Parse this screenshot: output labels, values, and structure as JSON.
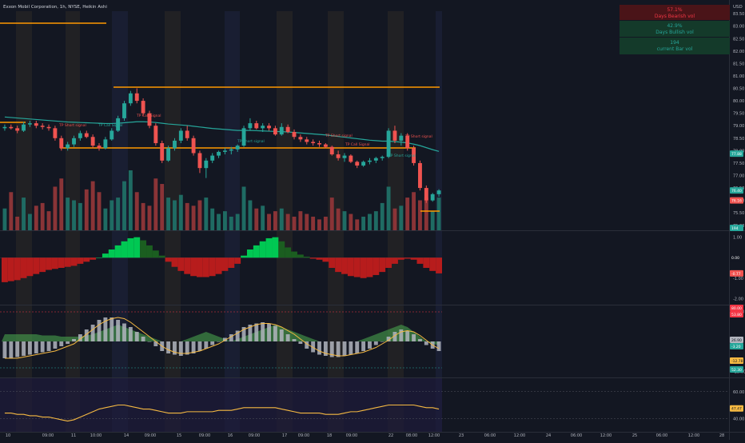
{
  "header": {
    "title": "Exxon Mobil Corporation, 1h, NYSE, Heikin Ashi",
    "currency": "USD"
  },
  "stats": [
    {
      "value": "57.1%",
      "label": "Days Bearish vol",
      "bg": "#4a1418",
      "color": "#f23645"
    },
    {
      "value": "42.9%",
      "label": "Days Bullish vol",
      "bg": "#143a2a",
      "color": "#26a69a"
    },
    {
      "value": "194",
      "label": "current Bar vol",
      "bg": "#143a2a",
      "color": "#26a69a"
    }
  ],
  "colors": {
    "bull": "#26a69a",
    "bear": "#ef5350",
    "vol_bull": "#1f6b63",
    "vol_bear": "#8a3437",
    "orange": "#ff9800",
    "teal_ma": "#26a69a",
    "macd_bright_green": "#00c853",
    "macd_dark_green": "#1b5e20",
    "macd_red": "#b71c1c",
    "stoch_gray": "#b2b5be",
    "stoch_band": "#4caf50",
    "rsi_line": "#f5b942",
    "rsi_bg": "#1e1b3a"
  },
  "signals": [
    "TP Short signal",
    "TP Call Signal",
    "TP Call Signal",
    "TP Short signal",
    "TP Short signal",
    "TP Call Signal",
    "TP Short signal"
  ],
  "axis": {
    "price_ticks": [
      "83.50",
      "83.00",
      "82.50",
      "82.00",
      "81.50",
      "81.00",
      "80.50",
      "80.00",
      "79.50",
      "79.00",
      "78.50",
      "78.00",
      "77.50",
      "77.00",
      "76.50",
      "76.00",
      "75.50",
      "75.00"
    ],
    "price_badges": [
      {
        "text": "77.88",
        "bg": "#26a69a"
      },
      {
        "text": "76.40",
        "bg": "#26a69a"
      },
      {
        "text": "76.16",
        "bg": "#ef5350"
      },
      {
        "text": "194",
        "bg": "#26a69a"
      }
    ],
    "macd_ticks": [
      "1.00",
      "0.00",
      "-1.00",
      "-2.00"
    ],
    "macd_badges": [
      {
        "text": "0.00",
        "bg": "#131722",
        "color": "#ffffff"
      },
      {
        "text": "-0.77",
        "bg": "#ef5350",
        "color": "#ffffff"
      }
    ],
    "stoch_ticks": [
      "25.00",
      "0.00",
      "-25.00"
    ],
    "stoch_badges": [
      {
        "text": "80.00",
        "bg": "#f23645",
        "color": "#ffffff"
      },
      {
        "text": "53.80",
        "bg": "#f23645",
        "color": "#ffffff"
      },
      {
        "text": "26.90",
        "bg": "#b2b5be",
        "color": "#131722"
      },
      {
        "text": "-3.20",
        "bg": "#26a69a",
        "color": "#ffffff"
      },
      {
        "text": "-12.78",
        "bg": "#f5b942",
        "color": "#131722"
      },
      {
        "text": "52.30",
        "bg": "#26a69a",
        "color": "#ffffff"
      }
    ],
    "rsi_ticks": [
      "60.00",
      "40.00"
    ],
    "rsi_badges": [
      {
        "text": "47.47",
        "bg": "#f5b942",
        "color": "#131722"
      }
    ],
    "time_labels": [
      "10",
      "09:00",
      "11",
      "10:00",
      "14",
      "09:00",
      "15",
      "09:00",
      "16",
      "09:00",
      "17",
      "09:00",
      "18",
      "09:00",
      "22",
      "08:00",
      "12:00",
      "23",
      "06:00",
      "12:00",
      "24",
      "06:00",
      "12:00",
      "25",
      "06:00",
      "12:00",
      "28"
    ]
  },
  "chart_data": {
    "type": "candlestick",
    "title": "Exxon Mobil Corporation, 1h, NYSE, Heikin Ashi",
    "y_unit": "USD",
    "ylim": [
      74.8,
      83.6
    ],
    "candles": [
      [
        78.9,
        79.05,
        78.8,
        78.95
      ],
      [
        78.95,
        79.05,
        78.85,
        78.9
      ],
      [
        78.9,
        79.0,
        78.7,
        78.8
      ],
      [
        78.8,
        79.15,
        78.75,
        79.05
      ],
      [
        79.05,
        79.2,
        78.95,
        79.1
      ],
      [
        79.1,
        79.2,
        78.9,
        79.0
      ],
      [
        79.0,
        79.1,
        78.85,
        78.95
      ],
      [
        78.95,
        79.05,
        78.8,
        78.9
      ],
      [
        78.9,
        79.0,
        78.4,
        78.5
      ],
      [
        78.5,
        78.6,
        78.0,
        78.1
      ],
      [
        78.1,
        78.35,
        78.0,
        78.25
      ],
      [
        78.25,
        78.6,
        78.15,
        78.5
      ],
      [
        78.5,
        78.8,
        78.4,
        78.7
      ],
      [
        78.7,
        78.8,
        78.5,
        78.55
      ],
      [
        78.55,
        78.65,
        78.1,
        78.2
      ],
      [
        78.2,
        78.3,
        78.0,
        78.1
      ],
      [
        78.1,
        78.55,
        78.05,
        78.45
      ],
      [
        78.45,
        78.9,
        78.4,
        78.8
      ],
      [
        78.8,
        79.4,
        78.75,
        79.3
      ],
      [
        79.3,
        80.0,
        79.2,
        79.9
      ],
      [
        79.9,
        80.4,
        79.8,
        80.3
      ],
      [
        80.3,
        80.5,
        79.9,
        80.0
      ],
      [
        80.0,
        80.1,
        79.4,
        79.5
      ],
      [
        79.5,
        79.6,
        78.9,
        79.0
      ],
      [
        79.0,
        79.1,
        78.2,
        78.3
      ],
      [
        78.3,
        78.4,
        77.5,
        77.6
      ],
      [
        77.6,
        78.2,
        77.55,
        78.1
      ],
      [
        78.1,
        78.5,
        78.0,
        78.4
      ],
      [
        78.4,
        78.9,
        78.3,
        78.8
      ],
      [
        78.8,
        79.0,
        78.4,
        78.5
      ],
      [
        78.5,
        78.6,
        77.8,
        77.9
      ],
      [
        77.9,
        78.0,
        77.1,
        77.3
      ],
      [
        77.3,
        77.7,
        76.9,
        77.6
      ],
      [
        77.6,
        77.9,
        77.5,
        77.8
      ],
      [
        77.8,
        78.0,
        77.7,
        77.95
      ],
      [
        77.95,
        78.1,
        77.85,
        78.0
      ],
      [
        78.0,
        78.15,
        77.85,
        78.05
      ],
      [
        78.05,
        78.25,
        77.95,
        78.2
      ],
      [
        78.2,
        79.0,
        78.15,
        78.9
      ],
      [
        78.9,
        79.3,
        78.8,
        79.1
      ],
      [
        79.1,
        79.2,
        78.85,
        78.9
      ],
      [
        78.9,
        79.1,
        78.75,
        79.0
      ],
      [
        79.0,
        79.1,
        78.8,
        78.9
      ],
      [
        78.9,
        79.0,
        78.6,
        78.65
      ],
      [
        78.65,
        79.1,
        78.6,
        78.95
      ],
      [
        78.95,
        79.05,
        78.7,
        78.75
      ],
      [
        78.75,
        78.85,
        78.45,
        78.55
      ],
      [
        78.55,
        78.65,
        78.35,
        78.45
      ],
      [
        78.45,
        78.55,
        78.25,
        78.35
      ],
      [
        78.35,
        78.45,
        78.2,
        78.3
      ],
      [
        78.3,
        78.4,
        78.15,
        78.25
      ],
      [
        78.25,
        78.3,
        78.1,
        78.15
      ],
      [
        78.15,
        78.2,
        77.8,
        77.85
      ],
      [
        77.85,
        78.0,
        77.6,
        77.7
      ],
      [
        77.7,
        77.9,
        77.55,
        77.8
      ],
      [
        77.8,
        77.85,
        77.5,
        77.55
      ],
      [
        77.55,
        77.6,
        77.3,
        77.4
      ],
      [
        77.4,
        77.6,
        77.35,
        77.55
      ],
      [
        77.55,
        77.7,
        77.45,
        77.6
      ],
      [
        77.6,
        77.75,
        77.5,
        77.7
      ],
      [
        77.7,
        77.8,
        77.6,
        77.75
      ],
      [
        77.75,
        78.9,
        77.7,
        78.8
      ],
      [
        78.8,
        79.0,
        78.3,
        78.4
      ],
      [
        78.4,
        78.7,
        78.2,
        78.6
      ],
      [
        78.6,
        78.7,
        78.0,
        78.1
      ],
      [
        78.1,
        78.2,
        77.4,
        77.5
      ],
      [
        77.5,
        77.6,
        76.4,
        76.5
      ],
      [
        76.5,
        76.6,
        75.9,
        76.0
      ],
      [
        76.0,
        76.3,
        75.95,
        76.25
      ],
      [
        76.25,
        76.45,
        76.15,
        76.4
      ]
    ],
    "volume": [
      40,
      70,
      25,
      60,
      30,
      45,
      50,
      35,
      80,
      95,
      60,
      55,
      50,
      75,
      90,
      70,
      40,
      55,
      60,
      90,
      110,
      70,
      50,
      45,
      95,
      85,
      60,
      55,
      65,
      50,
      45,
      55,
      60,
      40,
      30,
      35,
      25,
      30,
      80,
      55,
      40,
      45,
      30,
      35,
      40,
      30,
      25,
      35,
      30,
      25,
      20,
      25,
      60,
      40,
      35,
      30,
      20,
      25,
      30,
      35,
      50,
      80,
      40,
      45,
      60,
      70,
      55,
      60,
      35,
      60
    ],
    "ma": [
      79.35,
      79.33,
      79.31,
      79.29,
      79.27,
      79.25,
      79.23,
      79.21,
      79.19,
      79.17,
      79.15,
      79.14,
      79.13,
      79.12,
      79.11,
      79.1,
      79.09,
      79.09,
      79.1,
      79.12,
      79.14,
      79.16,
      79.16,
      79.15,
      79.13,
      79.1,
      79.07,
      79.05,
      79.03,
      79.01,
      78.98,
      78.95,
      78.92,
      78.89,
      78.87,
      78.85,
      78.83,
      78.81,
      78.81,
      78.81,
      78.8,
      78.79,
      78.78,
      78.77,
      78.76,
      78.75,
      78.73,
      78.71,
      78.69,
      78.67,
      78.65,
      78.63,
      78.6,
      78.57,
      78.54,
      78.51,
      78.48,
      78.45,
      78.42,
      78.4,
      78.38,
      78.38,
      78.36,
      78.34,
      78.31,
      78.26,
      78.2,
      78.12,
      78.04,
      77.97
    ],
    "macd_hist": [
      -1.2,
      -1.15,
      -1.1,
      -1.0,
      -0.9,
      -0.8,
      -0.7,
      -0.6,
      -0.55,
      -0.5,
      -0.45,
      -0.4,
      -0.3,
      -0.2,
      -0.1,
      0.0,
      0.2,
      0.4,
      0.6,
      0.8,
      0.95,
      1.0,
      0.85,
      0.6,
      0.35,
      0.1,
      -0.2,
      -0.45,
      -0.65,
      -0.8,
      -0.9,
      -0.95,
      -0.95,
      -0.9,
      -0.8,
      -0.65,
      -0.5,
      -0.3,
      0.1,
      0.4,
      0.6,
      0.8,
      0.95,
      1.0,
      0.8,
      0.5,
      0.3,
      0.15,
      0.05,
      -0.05,
      -0.1,
      -0.2,
      -0.5,
      -0.7,
      -0.8,
      -0.9,
      -0.95,
      -1.0,
      -0.95,
      -0.85,
      -0.7,
      -0.5,
      -0.3,
      -0.1,
      -0.05,
      -0.1,
      -0.3,
      -0.5,
      -0.65,
      -0.77
    ],
    "stoch_hist": [
      -14,
      -14,
      -13,
      -12,
      -11,
      -10,
      -9,
      -8,
      -6,
      -4,
      -2,
      2,
      6,
      10,
      14,
      18,
      20,
      20,
      18,
      15,
      12,
      8,
      4,
      0,
      -4,
      -8,
      -10,
      -11,
      -12,
      -11,
      -10,
      -8,
      -6,
      -3,
      0,
      3,
      6,
      9,
      12,
      14,
      15,
      16,
      15,
      13,
      10,
      6,
      2,
      -2,
      -6,
      -9,
      -11,
      -12,
      -13,
      -13,
      -12,
      -11,
      -10,
      -8,
      -6,
      -3,
      0,
      4,
      8,
      10,
      9,
      6,
      2,
      -3,
      -6,
      -8
    ],
    "stoch_band": [
      6,
      6,
      6,
      6,
      6,
      6,
      5,
      5,
      5,
      4,
      4,
      4,
      4,
      5,
      6,
      8,
      10,
      12,
      14,
      12,
      10,
      8,
      6,
      4,
      2,
      0,
      0,
      0,
      0,
      2,
      4,
      6,
      8,
      6,
      4,
      2,
      0,
      2,
      4,
      6,
      8,
      10,
      12,
      14,
      12,
      10,
      8,
      6,
      4,
      2,
      0,
      0,
      0,
      0,
      0,
      0,
      0,
      2,
      4,
      6,
      8,
      10,
      12,
      14,
      12,
      8,
      4,
      0,
      -2,
      -3
    ],
    "stoch_signal": [
      -14,
      -14,
      -14,
      -13,
      -12,
      -11,
      -10,
      -9,
      -8,
      -6,
      -4,
      -2,
      2,
      6,
      10,
      14,
      17,
      19,
      20,
      19,
      16,
      12,
      8,
      4,
      0,
      -4,
      -7,
      -9,
      -10,
      -10,
      -9,
      -8,
      -6,
      -4,
      -2,
      1,
      4,
      7,
      10,
      12,
      14,
      15,
      15,
      14,
      12,
      9,
      6,
      2,
      -2,
      -5,
      -8,
      -10,
      -11,
      -12,
      -12,
      -11,
      -10,
      -9,
      -7,
      -5,
      -2,
      1,
      5,
      8,
      9,
      8,
      5,
      1,
      -3,
      -6
    ],
    "rsi": [
      44,
      44,
      43,
      43,
      42,
      42,
      41,
      41,
      40,
      39,
      38,
      39,
      41,
      43,
      45,
      47,
      48,
      49,
      50,
      50,
      49,
      48,
      47,
      47,
      46,
      45,
      44,
      44,
      44,
      45,
      45,
      45,
      45,
      45,
      46,
      46,
      46,
      47,
      48,
      48,
      48,
      48,
      48,
      48,
      47,
      46,
      45,
      44,
      44,
      44,
      44,
      43,
      43,
      43,
      44,
      45,
      45,
      46,
      47,
      48,
      49,
      50,
      50,
      50,
      50,
      50,
      49,
      48,
      48,
      47
    ],
    "macd_ylim": [
      -2.3,
      1.3
    ],
    "stoch_ylim": [
      -30,
      30
    ],
    "rsi_ylim": [
      30,
      70
    ]
  }
}
